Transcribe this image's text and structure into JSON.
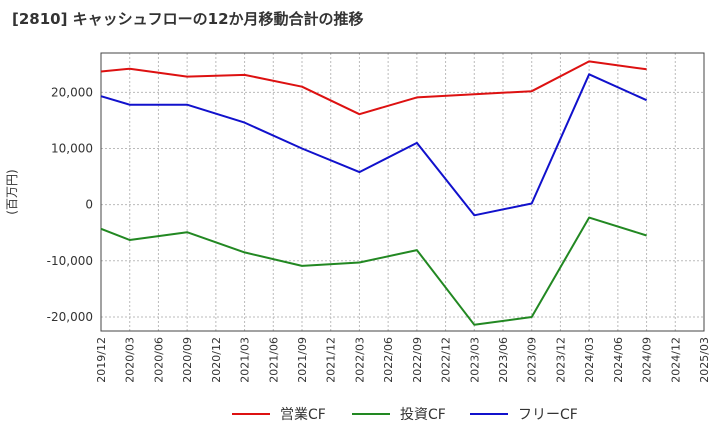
{
  "chart_data": {
    "type": "line",
    "title": "[2810]  キャッシュフローの12か月移動合計の推移",
    "ylabel": "(百万円)",
    "xlabel": "",
    "ylim": [
      -22500,
      27000
    ],
    "yticks": [
      -20000,
      -10000,
      0,
      10000,
      20000
    ],
    "ytick_labels": [
      "-20,000",
      "-10,000",
      "0",
      "10,000",
      "20,000"
    ],
    "categories": [
      "2019/12",
      "2020/03",
      "2020/06",
      "2020/09",
      "2020/12",
      "2021/03",
      "2021/06",
      "2021/09",
      "2021/12",
      "2022/03",
      "2022/06",
      "2022/09",
      "2022/12",
      "2023/03",
      "2023/06",
      "2023/09",
      "2023/12",
      "2024/03",
      "2024/06",
      "2024/09",
      "2024/12",
      "2025/03"
    ],
    "grid": true,
    "legend_position": "bottom",
    "series": [
      {
        "name": "営業CF",
        "color": "#dd1111",
        "points": [
          [
            "2019/12",
            23700
          ],
          [
            "2020/03",
            24200
          ],
          [
            "2020/09",
            22800
          ],
          [
            "2021/03",
            23100
          ],
          [
            "2021/09",
            21000
          ],
          [
            "2022/03",
            16100
          ],
          [
            "2022/09",
            19100
          ],
          [
            "2023/09",
            20200
          ],
          [
            "2024/03",
            25500
          ],
          [
            "2024/09",
            24100
          ]
        ]
      },
      {
        "name": "投資CF",
        "color": "#228822",
        "points": [
          [
            "2019/12",
            -4300
          ],
          [
            "2020/03",
            -6300
          ],
          [
            "2020/09",
            -4900
          ],
          [
            "2021/03",
            -8500
          ],
          [
            "2021/09",
            -10900
          ],
          [
            "2022/03",
            -10300
          ],
          [
            "2022/09",
            -8100
          ],
          [
            "2023/03",
            -21400
          ],
          [
            "2023/09",
            -20000
          ],
          [
            "2024/03",
            -2300
          ],
          [
            "2024/09",
            -5500
          ]
        ]
      },
      {
        "name": "フリーCF",
        "color": "#1111cc",
        "points": [
          [
            "2019/12",
            19300
          ],
          [
            "2020/03",
            17800
          ],
          [
            "2020/09",
            17800
          ],
          [
            "2021/03",
            14600
          ],
          [
            "2021/09",
            10000
          ],
          [
            "2022/03",
            5800
          ],
          [
            "2022/09",
            11000
          ],
          [
            "2023/03",
            -1900
          ],
          [
            "2023/09",
            200
          ],
          [
            "2024/03",
            23200
          ],
          [
            "2024/09",
            18600
          ]
        ]
      }
    ]
  }
}
